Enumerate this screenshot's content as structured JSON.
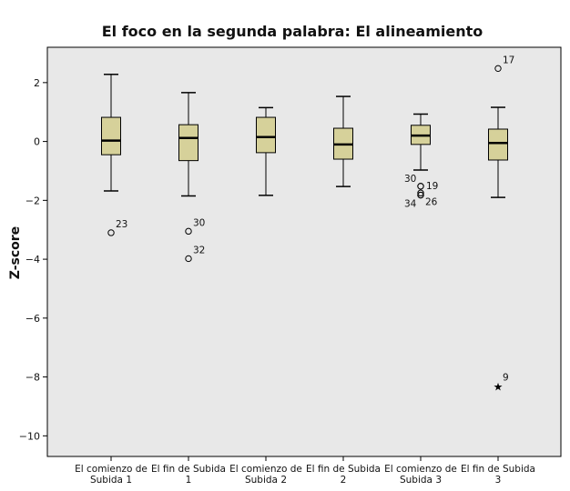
{
  "chart_data": {
    "type": "boxplot",
    "title": "El foco en la segunda palabra: El alineamiento",
    "ylabel": "Z-score",
    "xlabel": "",
    "ylim": [
      -10.7,
      3.2
    ],
    "yticks": [
      2,
      0,
      -2,
      -4,
      -6,
      -8,
      -10
    ],
    "ytick_labels": [
      "2",
      "0",
      "−2",
      "−4",
      "−6",
      "−8",
      "−10"
    ],
    "grid": false,
    "colors": {
      "plot_bg": "#e8e8e8",
      "box_fill": "#d6d19a",
      "stroke": "#000000"
    },
    "categories": [
      [
        "El comienzo de",
        "Subida 1"
      ],
      [
        "El fin de Subida",
        "1"
      ],
      [
        "El comienzo de",
        "Subida 2"
      ],
      [
        "El fin de Subida",
        "2"
      ],
      [
        "El comienzo de",
        "Subida 3"
      ],
      [
        "El fin de Subida",
        "3"
      ]
    ],
    "boxes": [
      {
        "whisker_low": -1.68,
        "q1": -0.45,
        "median": 0.03,
        "q3": 0.82,
        "whisker_high": 2.28
      },
      {
        "whisker_low": -1.85,
        "q1": -0.65,
        "median": 0.12,
        "q3": 0.57,
        "whisker_high": 1.66
      },
      {
        "whisker_low": -1.83,
        "q1": -0.38,
        "median": 0.15,
        "q3": 0.82,
        "whisker_high": 1.15
      },
      {
        "whisker_low": -1.53,
        "q1": -0.6,
        "median": -0.1,
        "q3": 0.45,
        "whisker_high": 1.53
      },
      {
        "whisker_low": -0.97,
        "q1": -0.1,
        "median": 0.2,
        "q3": 0.55,
        "whisker_high": 0.93
      },
      {
        "whisker_low": -1.9,
        "q1": -0.63,
        "median": -0.05,
        "q3": 0.42,
        "whisker_high": 1.16
      }
    ],
    "outliers": [
      {
        "box": 0,
        "value": -3.1,
        "label": "23",
        "marker": "circle",
        "label_dx": 5,
        "label_dy": -6
      },
      {
        "box": 1,
        "value": -3.05,
        "label": "30",
        "marker": "circle",
        "label_dx": 5,
        "label_dy": -6
      },
      {
        "box": 1,
        "value": -3.98,
        "label": "32",
        "marker": "circle",
        "label_dx": 5,
        "label_dy": -6
      },
      {
        "box": 4,
        "value": -1.52,
        "label": "19",
        "marker": "circle",
        "label_dx": 6,
        "label_dy": 3
      },
      {
        "box": 4,
        "value": -1.52,
        "label": "30",
        "marker": "circle",
        "label_dx": -18,
        "label_dy": -5
      },
      {
        "box": 4,
        "value": -1.75,
        "label": "",
        "marker": "circle",
        "label_dx": 0,
        "label_dy": 0
      },
      {
        "box": 4,
        "value": -1.82,
        "label": "26",
        "marker": "circle",
        "label_dx": 5,
        "label_dy": 11
      },
      {
        "box": 4,
        "value": -1.82,
        "label": "34",
        "marker": "circle",
        "label_dx": -18,
        "label_dy": 13
      },
      {
        "box": 5,
        "value": 2.48,
        "label": "17",
        "marker": "circle",
        "label_dx": 5,
        "label_dy": -6
      },
      {
        "box": 5,
        "value": -8.3,
        "label": "9",
        "marker": "star",
        "label_dx": 5,
        "label_dy": -6
      }
    ]
  }
}
